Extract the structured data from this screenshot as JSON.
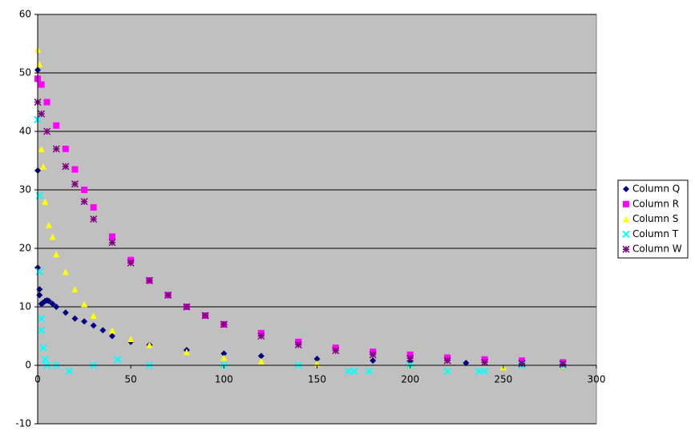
{
  "chart_data": {
    "type": "scatter",
    "xlim": [
      0,
      300
    ],
    "xticks": [
      0,
      50,
      100,
      150,
      200,
      250,
      300
    ],
    "ylim": [
      -10,
      60
    ],
    "yticks": [
      -10,
      0,
      10,
      20,
      30,
      40,
      50,
      60
    ],
    "grid": true,
    "legend": "right",
    "series": [
      {
        "name": "Column Q",
        "color": "#000080",
        "marker": "diamond",
        "x": [
          0,
          0,
          0,
          1,
          1,
          2,
          3,
          4,
          5,
          6,
          8,
          10,
          15,
          20,
          25,
          30,
          35,
          40,
          50,
          60,
          80,
          100,
          120,
          150,
          180,
          200,
          230,
          260,
          282
        ],
        "values": [
          50.5,
          33.3,
          16.7,
          13,
          12,
          10.5,
          10.7,
          11,
          11.1,
          11,
          10.5,
          10,
          9,
          8,
          7.5,
          6.8,
          6,
          5,
          4,
          3.5,
          2.6,
          2,
          1.6,
          1.1,
          0.8,
          0.6,
          0.4,
          0.2,
          0.1
        ]
      },
      {
        "name": "Column R",
        "color": "#ff00ff",
        "marker": "square",
        "x": [
          0,
          2,
          5,
          10,
          15,
          20,
          25,
          30,
          40,
          50,
          60,
          70,
          80,
          90,
          100,
          120,
          140,
          160,
          180,
          200,
          220,
          240,
          260,
          282
        ],
        "values": [
          49,
          48,
          45,
          41,
          37,
          33.5,
          30,
          27,
          22,
          18,
          14.5,
          12,
          10,
          8.5,
          7,
          5.5,
          4,
          3,
          2.3,
          1.8,
          1.3,
          1,
          0.8,
          0.5
        ]
      },
      {
        "name": "Column S",
        "color": "#ffff00",
        "marker": "triangle",
        "x": [
          0,
          1,
          2,
          3,
          4,
          6,
          8,
          10,
          15,
          20,
          25,
          30,
          40,
          50,
          60,
          80,
          100,
          120,
          150,
          200,
          250,
          282
        ],
        "values": [
          54,
          51.5,
          37,
          34,
          28,
          24,
          22,
          19,
          16,
          13,
          10.5,
          8.5,
          6,
          4.5,
          3.5,
          2.3,
          1.3,
          0.7,
          0.3,
          0,
          -0.3,
          0
        ]
      },
      {
        "name": "Column T",
        "color": "#00ffff",
        "marker": "x",
        "x": [
          0,
          1,
          1,
          2,
          2,
          3,
          4,
          5,
          10,
          17,
          30,
          43,
          60,
          100,
          140,
          167,
          170,
          178,
          200,
          220,
          237,
          240,
          260,
          282
        ],
        "values": [
          42,
          29,
          16,
          8,
          6,
          3,
          1,
          0,
          0,
          -1,
          0,
          1,
          0,
          0,
          0,
          -1,
          -1,
          -1,
          0,
          -1,
          -1,
          -1,
          0,
          0
        ]
      },
      {
        "name": "Column W",
        "color": "#800080",
        "marker": "star",
        "x": [
          0,
          2,
          5,
          10,
          15,
          20,
          25,
          30,
          40,
          50,
          60,
          70,
          80,
          90,
          100,
          120,
          140,
          160,
          180,
          200,
          220,
          240,
          260,
          282
        ],
        "values": [
          45,
          43,
          40,
          37,
          34,
          31,
          28,
          25,
          21,
          17.5,
          14.5,
          12,
          10,
          8.5,
          7,
          5,
          3.5,
          2.5,
          1.8,
          1.2,
          0.8,
          0.5,
          0.3,
          0.2
        ]
      }
    ]
  }
}
